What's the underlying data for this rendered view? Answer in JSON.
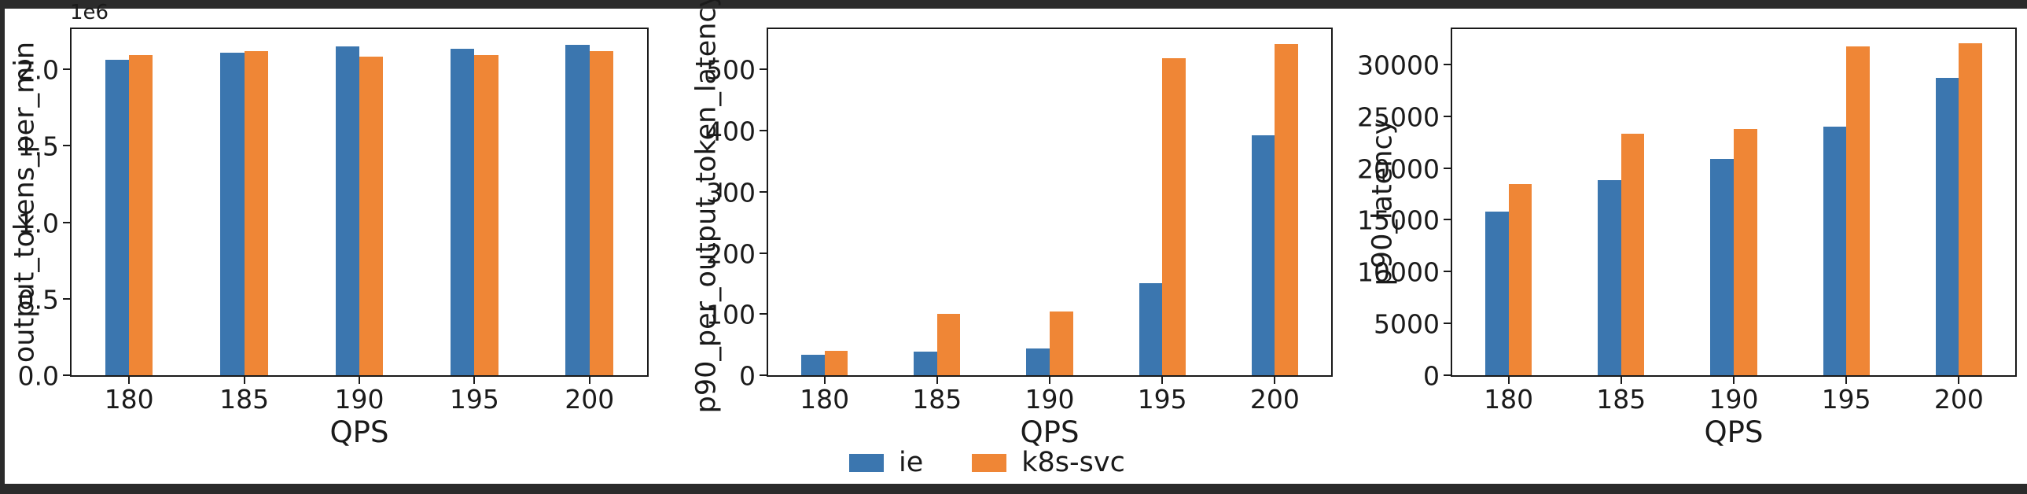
{
  "figure": {
    "background": "#ffffff",
    "frame_color": "#2b2b2b",
    "text_color": "#1a1a1a"
  },
  "colors": {
    "ie": "#3B76AF",
    "k8s_svc": "#EF8636"
  },
  "legend": {
    "items": [
      {
        "label": "ie",
        "color": "#3B76AF"
      },
      {
        "label": "k8s-svc",
        "color": "#EF8636"
      }
    ]
  },
  "chart_data": [
    {
      "type": "bar",
      "title": "",
      "xlabel": "QPS",
      "ylabel": "output_tokens_per_min",
      "offset_text": "1e6",
      "categories": [
        "180",
        "185",
        "190",
        "195",
        "200"
      ],
      "series": [
        {
          "name": "ie",
          "color": "#3B76AF",
          "values": [
            2060000,
            2110000,
            2150000,
            2135000,
            2160000
          ]
        },
        {
          "name": "k8s-svc",
          "color": "#EF8636",
          "values": [
            2095000,
            2120000,
            2085000,
            2095000,
            2120000
          ]
        }
      ],
      "ylim": [
        0,
        2263000
      ],
      "yticks": [
        {
          "value": 0,
          "label": "0.0"
        },
        {
          "value": 500000,
          "label": "0.5"
        },
        {
          "value": 1000000,
          "label": "1.0"
        },
        {
          "value": 1500000,
          "label": "1.5"
        },
        {
          "value": 2000000,
          "label": "2.0"
        }
      ],
      "grid": false,
      "legend_position": "figure-bottom-center"
    },
    {
      "type": "bar",
      "title": "",
      "xlabel": "QPS",
      "ylabel": "p90_per_output_token_latency",
      "offset_text": "",
      "categories": [
        "180",
        "185",
        "190",
        "195",
        "200"
      ],
      "series": [
        {
          "name": "ie",
          "color": "#3B76AF",
          "values": [
            33,
            38,
            44,
            150,
            393
          ]
        },
        {
          "name": "k8s-svc",
          "color": "#EF8636",
          "values": [
            40,
            100,
            104,
            518,
            541
          ]
        }
      ],
      "ylim": [
        0,
        566
      ],
      "yticks": [
        {
          "value": 0,
          "label": "0"
        },
        {
          "value": 100,
          "label": "100"
        },
        {
          "value": 200,
          "label": "200"
        },
        {
          "value": 300,
          "label": "300"
        },
        {
          "value": 400,
          "label": "400"
        },
        {
          "value": 500,
          "label": "500"
        }
      ],
      "grid": false,
      "legend_position": "figure-bottom-center"
    },
    {
      "type": "bar",
      "title": "",
      "xlabel": "QPS",
      "ylabel": "p90_latency",
      "offset_text": "",
      "categories": [
        "180",
        "185",
        "190",
        "195",
        "200"
      ],
      "series": [
        {
          "name": "ie",
          "color": "#3B76AF",
          "values": [
            15800,
            18800,
            20900,
            24000,
            28700
          ]
        },
        {
          "name": "k8s-svc",
          "color": "#EF8636",
          "values": [
            18450,
            23270,
            23770,
            31750,
            32000
          ]
        }
      ],
      "ylim": [
        0,
        33400
      ],
      "yticks": [
        {
          "value": 0,
          "label": "0"
        },
        {
          "value": 5000,
          "label": "5000"
        },
        {
          "value": 10000,
          "label": "10000"
        },
        {
          "value": 15000,
          "label": "15000"
        },
        {
          "value": 20000,
          "label": "20000"
        },
        {
          "value": 25000,
          "label": "25000"
        },
        {
          "value": 30000,
          "label": "30000"
        }
      ],
      "grid": false,
      "legend_position": "figure-bottom-center"
    }
  ]
}
